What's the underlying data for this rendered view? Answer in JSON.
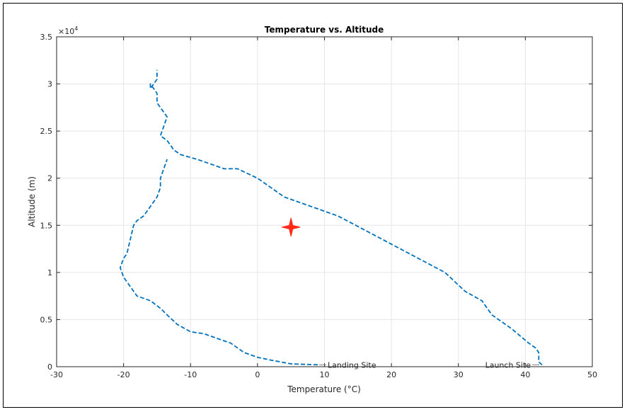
{
  "chart_data": {
    "type": "line",
    "title": "Temperature vs. Altitude",
    "xlabel": "Temperature (°C)",
    "ylabel": "Altitude (m)",
    "xlim": [
      -30,
      50
    ],
    "ylim": [
      0,
      35000
    ],
    "x_ticks": [
      -30,
      -20,
      -10,
      0,
      10,
      20,
      30,
      40,
      50
    ],
    "x_tick_labels": [
      "-30",
      "-20",
      "-10",
      "0",
      "10",
      "20",
      "30",
      "40",
      "50"
    ],
    "y_ticks": [
      0,
      5000,
      10000,
      15000,
      20000,
      25000,
      30000,
      35000
    ],
    "y_tick_labels": [
      "0",
      "0.5",
      "1",
      "1.5",
      "2",
      "2.5",
      "3",
      "3.5"
    ],
    "y_exponent_label": "×10",
    "y_exponent_power": "4",
    "grid": true,
    "line_color": "#0072BD",
    "line_style": "dashed",
    "series": [
      {
        "x": [
          42.5,
          42,
          42,
          41.5,
          40.5,
          38,
          35,
          33.5,
          31,
          28,
          24,
          20,
          16,
          12,
          8,
          4,
          2,
          0,
          -1.5,
          -3,
          -5,
          -7,
          -9,
          -11.5,
          -12.5,
          -13,
          -13.5,
          -14.5,
          -14,
          -13.5,
          -14,
          -15,
          -15,
          -16,
          -16,
          -15,
          -15
        ],
        "y": [
          200,
          500,
          1500,
          2000,
          2500,
          4000,
          5500,
          7000,
          8000,
          10000,
          11500,
          13000,
          14500,
          16000,
          17000,
          18000,
          19000,
          20000,
          20500,
          21000,
          21000,
          21500,
          22000,
          22500,
          23000,
          23500,
          24000,
          24500,
          25500,
          26500,
          27000,
          28000,
          29000,
          30000,
          29500,
          30500,
          31500
        ]
      },
      {
        "x": [
          9,
          5,
          2,
          0,
          -2,
          -4,
          -6,
          -8,
          -10,
          -12,
          -13.5,
          -14.5,
          -16,
          -18,
          -19,
          -20,
          -20.5,
          -20,
          -19.5,
          -19,
          -18.5,
          -18,
          -17,
          -16,
          -15,
          -14.5,
          -14.5,
          -14,
          -13.5
        ],
        "y": [
          200,
          300,
          700,
          1000,
          1500,
          2500,
          3000,
          3500,
          3700,
          4500,
          5500,
          6200,
          7000,
          7500,
          8500,
          9500,
          10500,
          11500,
          12000,
          13500,
          15000,
          15500,
          16000,
          17000,
          18000,
          19000,
          20000,
          21000,
          22000
        ]
      }
    ],
    "annotations": [
      {
        "text": "Landing Site",
        "x": 9,
        "y": 200
      },
      {
        "text": "Launch Site",
        "x": 42.5,
        "y": 200
      }
    ],
    "marker": {
      "x": 5,
      "y": 14800,
      "color": "#ff2a1a",
      "shape": "star"
    }
  }
}
